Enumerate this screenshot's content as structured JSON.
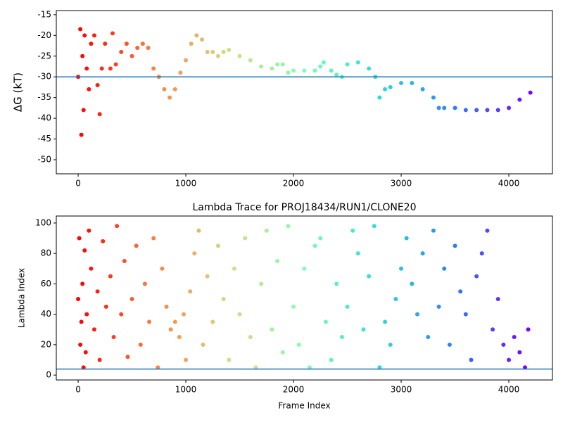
{
  "chart_data": [
    {
      "type": "scatter",
      "ylabel": "ΔG (kT)",
      "x": [
        0,
        20,
        30,
        40,
        50,
        60,
        80,
        100,
        120,
        150,
        180,
        200,
        220,
        250,
        300,
        320,
        350,
        400,
        450,
        500,
        550,
        600,
        650,
        700,
        750,
        800,
        850,
        900,
        950,
        1000,
        1050,
        1100,
        1150,
        1200,
        1250,
        1300,
        1350,
        1400,
        1500,
        1600,
        1700,
        1800,
        1850,
        1900,
        1950,
        2000,
        2100,
        2200,
        2250,
        2280,
        2350,
        2400,
        2450,
        2500,
        2600,
        2700,
        2760,
        2800,
        2850,
        2900,
        3000,
        3100,
        3200,
        3300,
        3350,
        3400,
        3500,
        3600,
        3700,
        3800,
        3900,
        4000,
        4100,
        4200
      ],
      "values": [
        -30,
        -18.5,
        -44,
        -25,
        -38,
        -20,
        -28,
        -33,
        -22,
        -20,
        -32,
        -39,
        -28,
        -22,
        -28,
        -19.5,
        -27,
        -24,
        -22,
        -25,
        -23,
        -22,
        -23,
        -28,
        -30,
        -33,
        -35,
        -33,
        -29,
        -26,
        -22,
        -20,
        -21,
        -24,
        -24,
        -25,
        -24,
        -23.5,
        -25,
        -26,
        -27.5,
        -28,
        -27,
        -27,
        -29,
        -28.5,
        -28.5,
        -28.5,
        -27.5,
        -26.5,
        -28.5,
        -29.5,
        -30,
        -27,
        -26.5,
        -28,
        -30,
        -35,
        -33,
        -32.5,
        -31.5,
        -31.5,
        -33,
        -35,
        -37.5,
        -37.5,
        -37.5,
        -38,
        -38,
        -38,
        -38,
        -37.5,
        -35.5,
        -33.8
      ],
      "colormap": [
        "#ff0000",
        "#ff7e41",
        "#d4dd80",
        "#80ffb4",
        "#2adddd",
        "#2c7ef7",
        "#8000ff"
      ],
      "hline": -30,
      "hline_color": "#1f77b4",
      "xlim": [
        -203,
        4405
      ],
      "ylim": [
        -53.4,
        -14
      ],
      "xticks": [
        0,
        1000,
        2000,
        3000,
        4000
      ],
      "yticks": [
        -50,
        -45,
        -40,
        -35,
        -30,
        -25,
        -20,
        -15
      ]
    },
    {
      "type": "scatter",
      "title": "Lambda Trace for PROJ18434/RUN1/CLONE20",
      "xlabel": "Frame Index",
      "ylabel": "Lambda Index",
      "x": [
        0,
        10,
        20,
        30,
        40,
        50,
        60,
        70,
        80,
        100,
        120,
        150,
        180,
        200,
        230,
        260,
        300,
        330,
        360,
        400,
        430,
        460,
        500,
        540,
        580,
        620,
        660,
        700,
        740,
        780,
        820,
        860,
        900,
        940,
        980,
        1000,
        1040,
        1080,
        1120,
        1160,
        1200,
        1250,
        1300,
        1350,
        1400,
        1450,
        1500,
        1550,
        1600,
        1650,
        1700,
        1750,
        1800,
        1850,
        1900,
        1950,
        2000,
        2050,
        2100,
        2150,
        2200,
        2250,
        2300,
        2350,
        2400,
        2450,
        2500,
        2550,
        2600,
        2650,
        2700,
        2750,
        2800,
        2850,
        2900,
        2950,
        3000,
        3050,
        3100,
        3150,
        3200,
        3250,
        3300,
        3350,
        3400,
        3450,
        3500,
        3550,
        3600,
        3650,
        3700,
        3750,
        3800,
        3850,
        3900,
        3950,
        4000,
        4050,
        4100,
        4150,
        4180
      ],
      "values": [
        50,
        90,
        20,
        35,
        60,
        5,
        82,
        15,
        40,
        95,
        70,
        30,
        55,
        10,
        88,
        45,
        65,
        25,
        98,
        40,
        75,
        12,
        50,
        85,
        20,
        60,
        35,
        90,
        5,
        70,
        45,
        30,
        35,
        25,
        40,
        10,
        55,
        80,
        95,
        20,
        65,
        35,
        85,
        50,
        10,
        70,
        40,
        90,
        25,
        5,
        60,
        95,
        30,
        75,
        15,
        98,
        45,
        20,
        70,
        5,
        85,
        90,
        35,
        10,
        60,
        25,
        45,
        95,
        80,
        30,
        65,
        98,
        5,
        35,
        20,
        50,
        70,
        90,
        60,
        40,
        80,
        25,
        95,
        45,
        70,
        20,
        85,
        55,
        40,
        10,
        65,
        80,
        95,
        30,
        50,
        20,
        10,
        25,
        15,
        5,
        30
      ],
      "colormap": [
        "#ff0000",
        "#ff7e41",
        "#d4dd80",
        "#80ffb4",
        "#2adddd",
        "#2c7ef7",
        "#8000ff"
      ],
      "hline": 4,
      "hline_color": "#1f77b4",
      "xlim": [
        -203,
        4405
      ],
      "ylim": [
        -3.2,
        104.6
      ],
      "xticks": [
        0,
        1000,
        2000,
        3000,
        4000
      ],
      "yticks": [
        0,
        20,
        40,
        60,
        80,
        100
      ]
    }
  ]
}
